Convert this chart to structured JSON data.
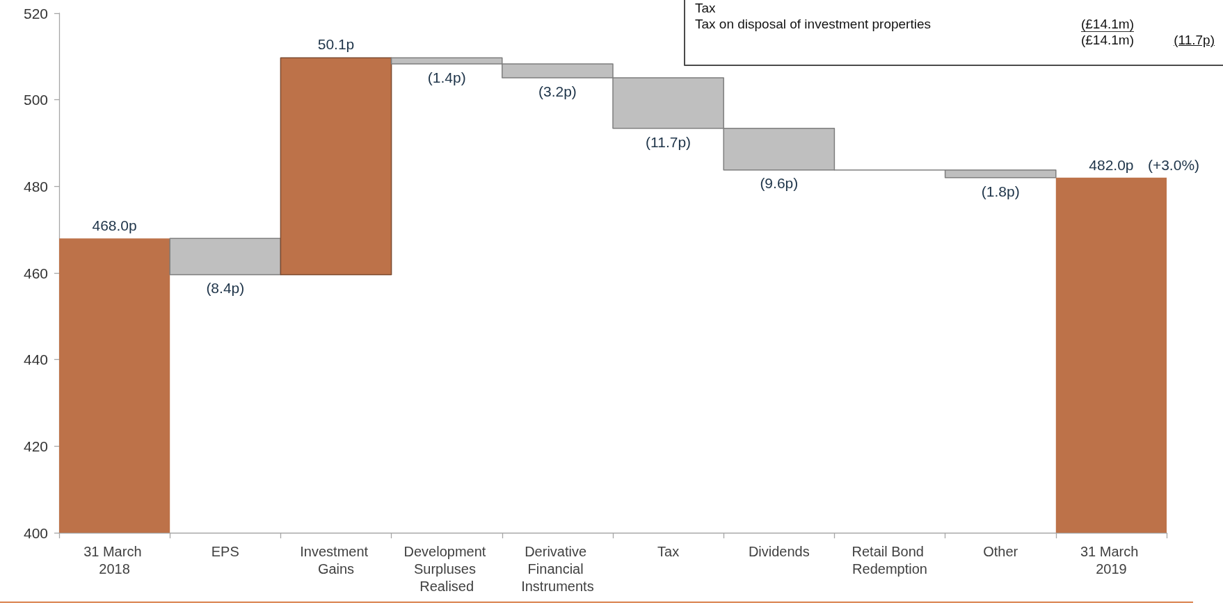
{
  "chart_data": {
    "type": "bar",
    "categories": [
      "31 March 2018",
      "EPS",
      "Investment Gains",
      "Development Surpluses Realised",
      "Derivative Financial Instruments",
      "Tax",
      "Dividends",
      "Retail Bond Redemption",
      "Other",
      "31 March 2019"
    ],
    "values": [
      468.0,
      -8.4,
      50.1,
      -1.4,
      -3.2,
      -11.7,
      -9.6,
      0,
      -1.8,
      482.0
    ],
    "base": [
      null,
      468.0,
      459.6,
      509.7,
      508.3,
      505.1,
      493.4,
      483.8,
      483.8,
      null
    ],
    "colors": [
      "#bd7249",
      "#bfbfbf",
      "#bd7249",
      "#bfbfbf",
      "#bfbfbf",
      "#bfbfbf",
      "#bfbfbf",
      "#7f7f7f",
      "#bfbfbf",
      "#bd7249"
    ],
    "value_labels": [
      "468.0p",
      "(8.4p)",
      "50.1p",
      "(1.4p)",
      "(3.2p)",
      "(11.7p)",
      "(9.6p)",
      null,
      "(1.8p)",
      "482.0p"
    ],
    "ylim": [
      400,
      520
    ],
    "yticks": [
      400,
      420,
      440,
      460,
      480,
      500,
      520
    ],
    "annotations": [
      "Tax",
      "Tax on disposal of investment properties",
      "(£14.1m)",
      "(£14.1m)",
      "(11.7p)",
      {
        "text": "(+3.0%)",
        "x": "31 March 2019",
        "y": 482.0
      }
    ]
  }
}
